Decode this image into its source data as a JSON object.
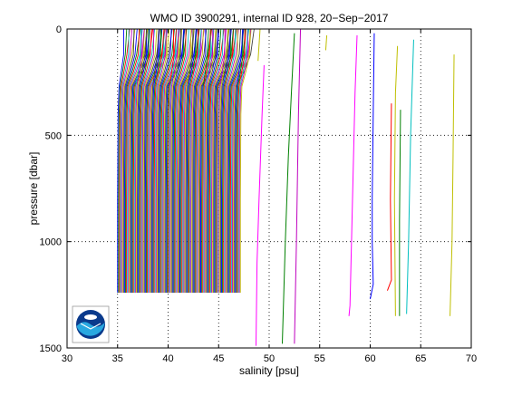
{
  "chart_data": {
    "type": "line",
    "title": "WMO ID 3900291, internal ID 928, 20−Sep−2017",
    "xlabel": "salinity [psu]",
    "ylabel": "pressure [dbar]",
    "xlim": [
      30,
      70
    ],
    "ylim": [
      0,
      1500
    ],
    "y_inverted": true,
    "grid": true,
    "x_ticks": [
      "30",
      "35",
      "40",
      "45",
      "50",
      "55",
      "60",
      "65",
      "70"
    ],
    "y_ticks": [
      "0",
      "500",
      "1000",
      "1500"
    ],
    "cluster": {
      "count": 125,
      "x_start": 35.0,
      "x_step": 0.098,
      "deep_pressure": 1240,
      "thermocline_pressure": 270,
      "surface_shift": [
        0.6,
        1.6
      ],
      "colors": [
        "#0000ff",
        "#008000",
        "#ff0000",
        "#00bfbf",
        "#bf00bf",
        "#bfbf00",
        "#404040"
      ]
    },
    "series": [
      {
        "color": "#ff00ff",
        "points": [
          [
            49.5,
            170
          ],
          [
            49.3,
            400
          ],
          [
            49.0,
            800
          ],
          [
            48.8,
            1100
          ],
          [
            48.7,
            1490
          ]
        ]
      },
      {
        "color": "#bfbf00",
        "points": [
          [
            49.1,
            0
          ],
          [
            48.9,
            150
          ]
        ]
      },
      {
        "color": "#008000",
        "points": [
          [
            52.5,
            20
          ],
          [
            52.2,
            300
          ],
          [
            51.9,
            600
          ],
          [
            51.6,
            1000
          ],
          [
            51.3,
            1480
          ]
        ]
      },
      {
        "color": "#bf00bf",
        "points": [
          [
            53.1,
            0
          ],
          [
            52.9,
            400
          ],
          [
            52.7,
            1000
          ],
          [
            52.5,
            1480
          ]
        ]
      },
      {
        "color": "#bfbf00",
        "points": [
          [
            55.7,
            30
          ],
          [
            55.6,
            100
          ]
        ]
      },
      {
        "color": "#ff00ff",
        "points": [
          [
            58.7,
            30
          ],
          [
            58.5,
            300
          ],
          [
            58.3,
            700
          ],
          [
            58.0,
            1300
          ],
          [
            57.9,
            1350
          ]
        ]
      },
      {
        "color": "#0000ff",
        "points": [
          [
            60.4,
            20
          ],
          [
            60.3,
            400
          ],
          [
            60.2,
            800
          ],
          [
            60.2,
            1000
          ],
          [
            60.3,
            1200
          ],
          [
            60.0,
            1270
          ]
        ]
      },
      {
        "color": "#ff0000",
        "points": [
          [
            62.1,
            350
          ],
          [
            62.0,
            800
          ],
          [
            62.1,
            1180
          ],
          [
            61.7,
            1230
          ]
        ]
      },
      {
        "color": "#bfbf00",
        "points": [
          [
            62.7,
            80
          ],
          [
            62.5,
            300
          ],
          [
            62.4,
            800
          ],
          [
            62.5,
            1350
          ]
        ]
      },
      {
        "color": "#008000",
        "points": [
          [
            63.0,
            380
          ],
          [
            62.9,
            900
          ],
          [
            62.9,
            1350
          ]
        ]
      },
      {
        "color": "#00bfbf",
        "points": [
          [
            64.3,
            50
          ],
          [
            64.0,
            500
          ],
          [
            63.8,
            1000
          ],
          [
            63.6,
            1340
          ]
        ]
      },
      {
        "color": "#bfbf00",
        "points": [
          [
            68.3,
            120
          ],
          [
            68.2,
            600
          ],
          [
            68.1,
            1000
          ],
          [
            67.9,
            1350
          ]
        ]
      }
    ]
  },
  "logo": {
    "name": "NOAA"
  }
}
